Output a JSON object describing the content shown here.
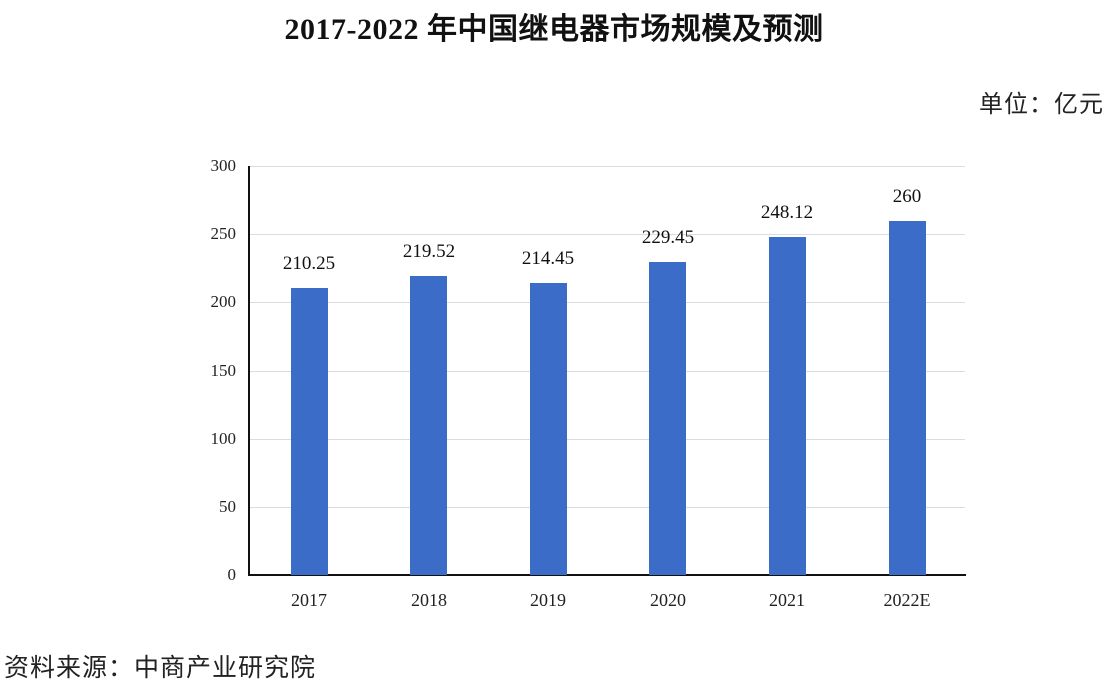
{
  "header": {
    "title": "2017-2022 年中国继电器市场规模及预测",
    "unit": "单位：亿元"
  },
  "footer": {
    "source": "资料来源：中商产业研究院"
  },
  "colors": {
    "bar": "#3a6cc8",
    "gridline": "#d9dde3",
    "axis": "#111111"
  },
  "chart_data": {
    "type": "bar",
    "title": "2017-2022 年中国继电器市场规模及预测",
    "xlabel": "",
    "ylabel": "单位：亿元",
    "categories": [
      "2017",
      "2018",
      "2019",
      "2020",
      "2021",
      "2022E"
    ],
    "values": [
      210.25,
      219.52,
      214.45,
      229.45,
      248.12,
      260
    ],
    "value_labels": [
      "210.25",
      "219.52",
      "214.45",
      "229.45",
      "248.12",
      "260"
    ],
    "ylim": [
      0,
      300
    ],
    "yticks": [
      0,
      50,
      100,
      150,
      200,
      250,
      300
    ],
    "ytick_labels": [
      "0",
      "50",
      "100",
      "150",
      "200",
      "250",
      "300"
    ],
    "grid": true,
    "legend": null,
    "annotations": [
      "单位：亿元",
      "资料来源：中商产业研究院"
    ]
  }
}
